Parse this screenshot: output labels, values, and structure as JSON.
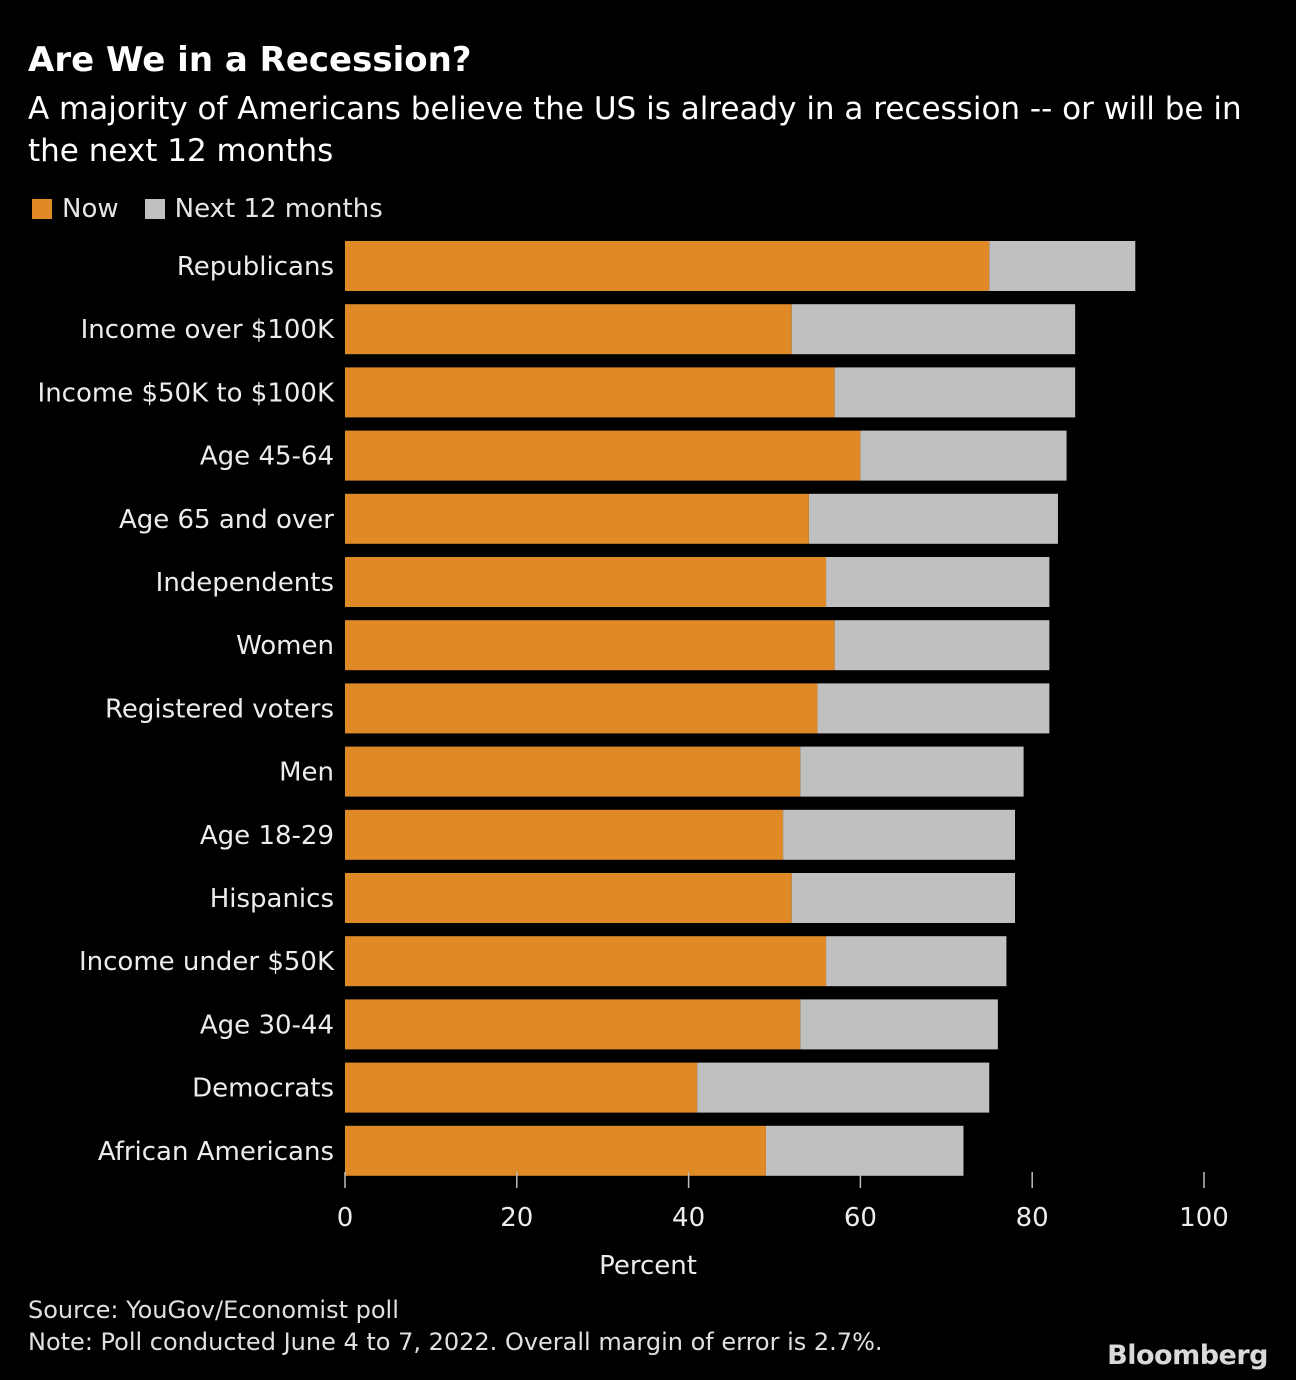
{
  "title": "Are We in a Recession?",
  "subtitle": "A majority of Americans believe the US is already in a recession -- or will be in the next 12 months",
  "legend": {
    "now_label": "Now",
    "next_label": "Next 12 months"
  },
  "colors": {
    "now": "#df8a26",
    "next": "#c0c0c0",
    "background": "#000000"
  },
  "chart_data": {
    "type": "bar",
    "orientation": "horizontal",
    "stacked": true,
    "categories": [
      "Republicans",
      "Income over $100K",
      "Income $50K to $100K",
      "Age 45-64",
      "Age 65 and over",
      "Independents",
      "Women",
      "Registered voters",
      "Men",
      "Age 18-29",
      "Hispanics",
      "Income under $50K",
      "Age 30-44",
      "Democrats",
      "African Americans"
    ],
    "series": [
      {
        "name": "Now",
        "values": [
          75,
          52,
          57,
          60,
          54,
          56,
          57,
          55,
          53,
          51,
          52,
          56,
          53,
          41,
          49
        ]
      },
      {
        "name": "Next 12 months",
        "values": [
          17,
          33,
          28,
          24,
          29,
          26,
          25,
          27,
          26,
          27,
          26,
          21,
          23,
          34,
          23
        ]
      }
    ],
    "xlabel": "Percent",
    "ylabel": "",
    "xlim": [
      0,
      100
    ],
    "xticks": [
      0,
      20,
      40,
      60,
      80,
      100
    ],
    "grid": false,
    "legend_position": "top-left"
  },
  "footer": {
    "source": "Source: YouGov/Economist poll",
    "note": "Note: Poll conducted June 4 to 7, 2022. Overall margin of error is 2.7%."
  },
  "brand": "Bloomberg"
}
